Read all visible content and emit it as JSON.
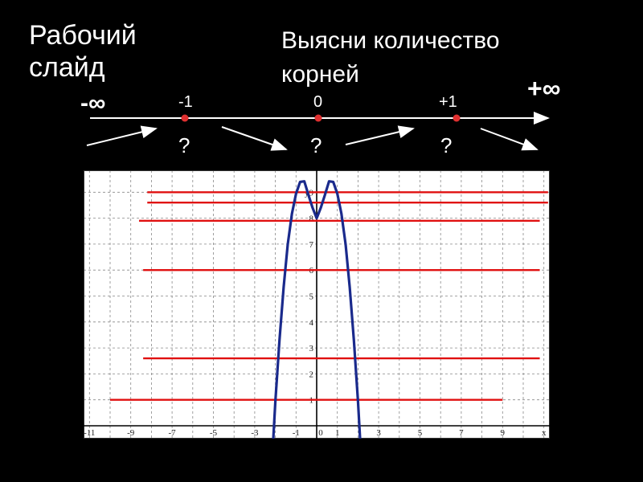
{
  "slide_label": "Рабочий слайд",
  "task_text": "Выясни количество корней",
  "number_line": {
    "neg_inf": "-∞",
    "pos_inf": "+∞",
    "points": [
      {
        "label": "-1",
        "question": "?"
      },
      {
        "label": "0",
        "question": "?"
      },
      {
        "label": "+1",
        "question": "?"
      }
    ]
  },
  "colors": {
    "background": "#000000",
    "point": "#e03030",
    "curve": "#1a2a8c",
    "level_lines": "#e01010"
  },
  "chart_data": {
    "type": "line",
    "xlabel": "x",
    "ylabel": "y",
    "xlim": [
      -11.5,
      11.5
    ],
    "ylim": [
      -0.3,
      9.5
    ],
    "x_ticks": [
      -11,
      -9,
      -7,
      -5,
      -3,
      -1,
      0,
      1,
      3,
      5,
      7,
      9,
      11
    ],
    "x_tick_labels": [
      "-11",
      "-9",
      "-7",
      "-5",
      "-3",
      "-1",
      "0",
      "1",
      "3",
      "5",
      "7",
      "9",
      "x"
    ],
    "y_ticks": [
      1,
      2,
      3,
      4,
      5,
      6,
      7,
      8,
      9
    ],
    "y_tick_labels": [
      "1",
      "2",
      "3",
      "4",
      "5",
      "6",
      "7",
      "8",
      "y9"
    ],
    "grid": true,
    "curve": {
      "x": [
        -2.1,
        -2.0,
        -1.8,
        -1.6,
        -1.4,
        -1.2,
        -1.0,
        -0.8,
        -0.6,
        -0.4,
        -0.2,
        0,
        0.2,
        0.4,
        0.6,
        0.8,
        1.0,
        1.2,
        1.4,
        1.6,
        1.8,
        2.0,
        2.1
      ],
      "y": [
        -0.5,
        0.94,
        3.29,
        5.34,
        6.99,
        8.17,
        8.94,
        9.4,
        9.42,
        8.9,
        8.4,
        8.0,
        8.4,
        8.9,
        9.42,
        9.4,
        8.94,
        8.17,
        6.99,
        5.34,
        3.29,
        0.94,
        -0.5
      ]
    },
    "levels": [
      {
        "y": 9.0,
        "x_from": -8.2,
        "x_to": 11.2
      },
      {
        "y": 8.6,
        "x_from": -8.2,
        "x_to": 11.2
      },
      {
        "y": 7.9,
        "x_from": -8.6,
        "x_to": 10.8
      },
      {
        "y": 6.0,
        "x_from": -8.4,
        "x_to": 10.8
      },
      {
        "y": 2.6,
        "x_from": -8.4,
        "x_to": 10.8
      },
      {
        "y": 1.0,
        "x_from": -10.0,
        "x_to": 9.0
      }
    ]
  }
}
